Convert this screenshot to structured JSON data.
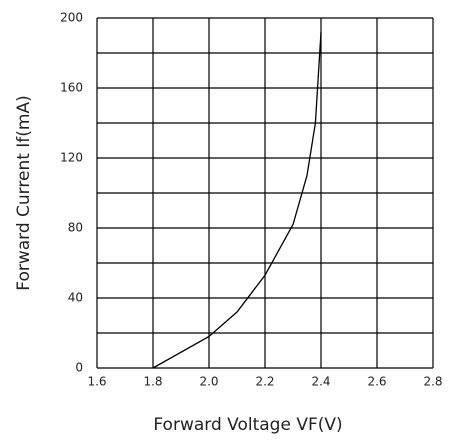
{
  "chart_data": {
    "type": "line",
    "xlabel": "Forward Voltage VF(V)",
    "ylabel": "Forward Current If(mA)",
    "series": [
      {
        "color": "#000000",
        "x": [
          1.8,
          2.0,
          2.1,
          2.2,
          2.3,
          2.35,
          2.38,
          2.4
        ],
        "values": [
          0,
          18,
          32,
          53,
          82,
          110,
          140,
          192
        ]
      }
    ],
    "xlim": [
      1.6,
      2.8
    ],
    "xticks": [
      1.6,
      1.8,
      {
        "value": 2,
        "label": "2.0"
      },
      2.2,
      2.4,
      2.6,
      2.8
    ],
    "ylim": [
      0,
      200
    ],
    "yticks": [
      0,
      40,
      80,
      120,
      160,
      200
    ],
    "grid_yticks": [
      0,
      20,
      40,
      60,
      80,
      100,
      120,
      140,
      160,
      180,
      200
    ],
    "grid": true
  }
}
